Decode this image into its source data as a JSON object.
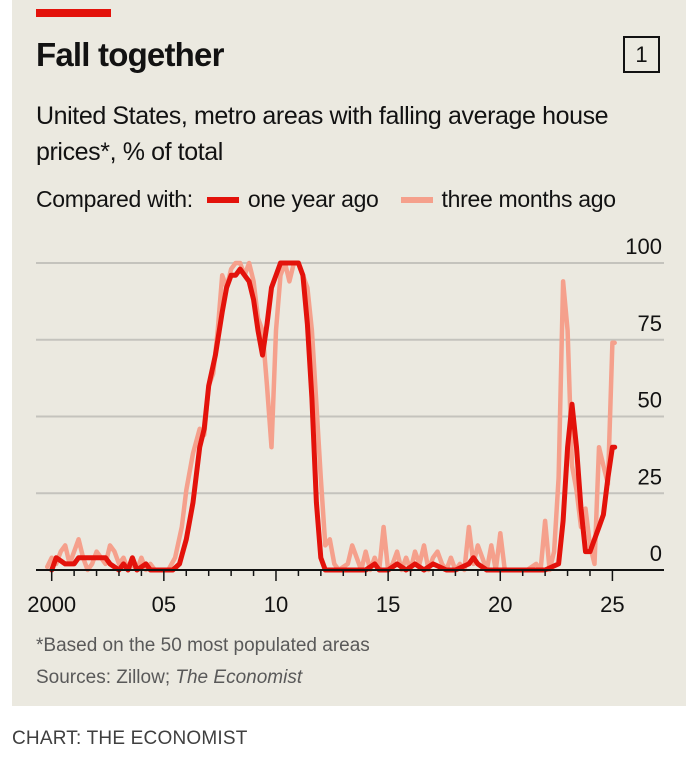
{
  "colors": {
    "background": "#ebe9e0",
    "accent": "#e3120b",
    "series_one_year": "#e3120b",
    "series_three_months": "#f5a08c",
    "grid": "#c4c3bd",
    "text": "#121212"
  },
  "badge": "1",
  "legend_prefix": "Compared with:",
  "footnote": "*Based on the 50 most populated areas",
  "sources_prefix": "Sources: Zillow; ",
  "sources_italic": "The Economist",
  "credit": "CHART: THE ECONOMIST",
  "chart_data": {
    "type": "line",
    "title": "Fall together",
    "subtitle": "United States, metro areas with falling average house prices*, % of total",
    "xlabel": "",
    "ylabel": "",
    "xlim": [
      1999.3,
      2027.3
    ],
    "ylim": [
      0,
      100
    ],
    "x_ticks": [
      2000,
      2005,
      2010,
      2015,
      2020,
      2025
    ],
    "x_tick_labels": [
      "2000",
      "05",
      "10",
      "15",
      "20",
      "25"
    ],
    "y_ticks": [
      0,
      25,
      50,
      75,
      100
    ],
    "y_tick_labels": [
      "0",
      "25",
      "50",
      "75",
      "100"
    ],
    "grid": true,
    "series": [
      {
        "name": "three months ago",
        "points": [
          [
            1999.8,
            1
          ],
          [
            2000.0,
            4
          ],
          [
            2000.2,
            2
          ],
          [
            2000.4,
            6
          ],
          [
            2000.6,
            8
          ],
          [
            2000.8,
            2
          ],
          [
            2001.0,
            6
          ],
          [
            2001.2,
            10
          ],
          [
            2001.4,
            4
          ],
          [
            2001.6,
            0
          ],
          [
            2001.8,
            2
          ],
          [
            2002.0,
            6
          ],
          [
            2002.2,
            4
          ],
          [
            2002.4,
            2
          ],
          [
            2002.6,
            8
          ],
          [
            2002.8,
            6
          ],
          [
            2003.0,
            2
          ],
          [
            2003.2,
            4
          ],
          [
            2003.4,
            0
          ],
          [
            2003.6,
            2
          ],
          [
            2003.8,
            0
          ],
          [
            2004.0,
            4
          ],
          [
            2004.2,
            0
          ],
          [
            2004.4,
            2
          ],
          [
            2004.6,
            0
          ],
          [
            2004.8,
            0
          ],
          [
            2005.2,
            0
          ],
          [
            2005.5,
            4
          ],
          [
            2005.8,
            14
          ],
          [
            2006.0,
            26
          ],
          [
            2006.3,
            38
          ],
          [
            2006.6,
            46
          ],
          [
            2006.8,
            44
          ],
          [
            2007.0,
            60
          ],
          [
            2007.2,
            64
          ],
          [
            2007.4,
            78
          ],
          [
            2007.6,
            96
          ],
          [
            2007.8,
            92
          ],
          [
            2008.0,
            98
          ],
          [
            2008.2,
            100
          ],
          [
            2008.4,
            100
          ],
          [
            2008.6,
            96
          ],
          [
            2008.8,
            100
          ],
          [
            2009.0,
            94
          ],
          [
            2009.2,
            82
          ],
          [
            2009.4,
            78
          ],
          [
            2009.6,
            60
          ],
          [
            2009.8,
            40
          ],
          [
            2010.0,
            78
          ],
          [
            2010.2,
            96
          ],
          [
            2010.4,
            100
          ],
          [
            2010.6,
            94
          ],
          [
            2010.8,
            100
          ],
          [
            2011.0,
            100
          ],
          [
            2011.2,
            96
          ],
          [
            2011.4,
            92
          ],
          [
            2011.6,
            78
          ],
          [
            2011.8,
            54
          ],
          [
            2012.0,
            30
          ],
          [
            2012.2,
            8
          ],
          [
            2012.4,
            10
          ],
          [
            2012.6,
            2
          ],
          [
            2012.8,
            0
          ],
          [
            2013.2,
            2
          ],
          [
            2013.4,
            8
          ],
          [
            2013.6,
            4
          ],
          [
            2013.8,
            0
          ],
          [
            2014.0,
            6
          ],
          [
            2014.2,
            0
          ],
          [
            2014.4,
            4
          ],
          [
            2014.6,
            0
          ],
          [
            2014.8,
            14
          ],
          [
            2015.0,
            0
          ],
          [
            2015.2,
            2
          ],
          [
            2015.4,
            6
          ],
          [
            2015.6,
            0
          ],
          [
            2015.8,
            4
          ],
          [
            2016.0,
            0
          ],
          [
            2016.2,
            6
          ],
          [
            2016.4,
            2
          ],
          [
            2016.6,
            8
          ],
          [
            2016.8,
            0
          ],
          [
            2017.0,
            4
          ],
          [
            2017.2,
            6
          ],
          [
            2017.4,
            2
          ],
          [
            2017.6,
            0
          ],
          [
            2017.8,
            4
          ],
          [
            2018.0,
            0
          ],
          [
            2018.2,
            2
          ],
          [
            2018.4,
            0
          ],
          [
            2018.6,
            14
          ],
          [
            2018.8,
            2
          ],
          [
            2019.0,
            8
          ],
          [
            2019.2,
            4
          ],
          [
            2019.4,
            0
          ],
          [
            2019.6,
            8
          ],
          [
            2019.8,
            0
          ],
          [
            2020.0,
            12
          ],
          [
            2020.2,
            0
          ],
          [
            2020.4,
            0
          ],
          [
            2020.8,
            0
          ],
          [
            2021.2,
            0
          ],
          [
            2021.6,
            2
          ],
          [
            2021.8,
            0
          ],
          [
            2022.0,
            16
          ],
          [
            2022.2,
            0
          ],
          [
            2022.4,
            6
          ],
          [
            2022.6,
            30
          ],
          [
            2022.8,
            94
          ],
          [
            2023.0,
            78
          ],
          [
            2023.2,
            34
          ],
          [
            2023.4,
            26
          ],
          [
            2023.6,
            14
          ],
          [
            2023.8,
            20
          ],
          [
            2024.0,
            8
          ],
          [
            2024.2,
            2
          ],
          [
            2024.4,
            40
          ],
          [
            2024.6,
            34
          ],
          [
            2024.8,
            28
          ],
          [
            2025.0,
            74
          ],
          [
            2025.1,
            74
          ]
        ]
      },
      {
        "name": "one year ago",
        "points": [
          [
            2000.0,
            0
          ],
          [
            2000.2,
            4
          ],
          [
            2000.6,
            2
          ],
          [
            2001.0,
            2
          ],
          [
            2001.2,
            4
          ],
          [
            2001.6,
            4
          ],
          [
            2002.4,
            4
          ],
          [
            2002.6,
            2
          ],
          [
            2003.0,
            0
          ],
          [
            2003.2,
            2
          ],
          [
            2003.4,
            0
          ],
          [
            2003.6,
            4
          ],
          [
            2003.8,
            0
          ],
          [
            2004.2,
            2
          ],
          [
            2004.4,
            0
          ],
          [
            2005.4,
            0
          ],
          [
            2005.7,
            2
          ],
          [
            2006.0,
            10
          ],
          [
            2006.3,
            22
          ],
          [
            2006.6,
            40
          ],
          [
            2006.8,
            46
          ],
          [
            2007.0,
            60
          ],
          [
            2007.3,
            70
          ],
          [
            2007.6,
            84
          ],
          [
            2007.8,
            92
          ],
          [
            2008.0,
            96
          ],
          [
            2008.2,
            96
          ],
          [
            2008.4,
            98
          ],
          [
            2008.6,
            96
          ],
          [
            2008.8,
            94
          ],
          [
            2009.0,
            88
          ],
          [
            2009.2,
            78
          ],
          [
            2009.4,
            70
          ],
          [
            2009.6,
            80
          ],
          [
            2009.8,
            92
          ],
          [
            2010.0,
            96
          ],
          [
            2010.2,
            100
          ],
          [
            2010.6,
            100
          ],
          [
            2011.0,
            100
          ],
          [
            2011.2,
            96
          ],
          [
            2011.4,
            80
          ],
          [
            2011.6,
            56
          ],
          [
            2011.8,
            22
          ],
          [
            2012.0,
            4
          ],
          [
            2012.2,
            0
          ],
          [
            2013.0,
            0
          ],
          [
            2014.0,
            0
          ],
          [
            2014.4,
            2
          ],
          [
            2014.6,
            0
          ],
          [
            2015.0,
            0
          ],
          [
            2015.4,
            2
          ],
          [
            2015.8,
            0
          ],
          [
            2016.2,
            2
          ],
          [
            2016.6,
            0
          ],
          [
            2017.0,
            2
          ],
          [
            2017.6,
            0
          ],
          [
            2018.0,
            0
          ],
          [
            2018.6,
            2
          ],
          [
            2018.8,
            4
          ],
          [
            2019.0,
            2
          ],
          [
            2019.4,
            0
          ],
          [
            2020.0,
            0
          ],
          [
            2021.0,
            0
          ],
          [
            2022.0,
            0
          ],
          [
            2022.6,
            2
          ],
          [
            2022.8,
            16
          ],
          [
            2023.0,
            40
          ],
          [
            2023.2,
            54
          ],
          [
            2023.4,
            40
          ],
          [
            2023.6,
            20
          ],
          [
            2023.8,
            6
          ],
          [
            2024.0,
            6
          ],
          [
            2024.2,
            10
          ],
          [
            2024.4,
            14
          ],
          [
            2024.6,
            18
          ],
          [
            2024.8,
            30
          ],
          [
            2025.0,
            40
          ],
          [
            2025.1,
            40
          ]
        ]
      }
    ]
  }
}
